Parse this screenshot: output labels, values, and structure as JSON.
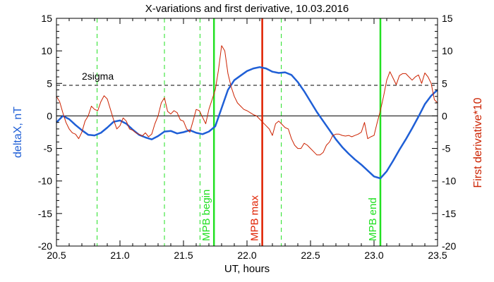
{
  "chart_data": {
    "type": "line",
    "title": "X-variations and first derivative, 10.03.2016",
    "xlabel": "UT, hours",
    "ylabel": "deltaX, nT",
    "ylabel_right": "First derivative*10",
    "xlim": [
      20.5,
      23.5
    ],
    "ylim": [
      -20,
      15
    ],
    "ylim_right": [
      -20,
      15
    ],
    "x_ticks": [
      "20.5",
      "21.0",
      "21.5",
      "22.0",
      "22.5",
      "23.0",
      "23.5"
    ],
    "y_ticks": [
      "15",
      "10",
      "5",
      "0",
      "-5",
      "-10",
      "-15",
      "-20"
    ],
    "y_ticks_right": [
      "15",
      "10",
      "5",
      "0",
      "-5",
      "-10",
      "-15",
      "-20"
    ],
    "colors": {
      "deltaX": "#1f5fd6",
      "derivative": "#cc2200",
      "mpb_boundary": "#22e022",
      "mpb_max": "#e02000",
      "axis": "#000000"
    },
    "series": [
      {
        "name": "deltaX, nT",
        "color": "#1f5fd6",
        "x": [
          20.5,
          20.55,
          20.6,
          20.65,
          20.7,
          20.75,
          20.8,
          20.85,
          20.9,
          20.95,
          21.0,
          21.05,
          21.1,
          21.15,
          21.2,
          21.25,
          21.3,
          21.35,
          21.4,
          21.45,
          21.5,
          21.55,
          21.6,
          21.65,
          21.7,
          21.75,
          21.8,
          21.85,
          21.9,
          21.95,
          22.0,
          22.05,
          22.1,
          22.15,
          22.2,
          22.25,
          22.3,
          22.35,
          22.4,
          22.45,
          22.5,
          22.55,
          22.6,
          22.65,
          22.7,
          22.75,
          22.8,
          22.85,
          22.9,
          22.95,
          23.0,
          23.05,
          23.1,
          23.15,
          23.2,
          23.25,
          23.3,
          23.35,
          23.4,
          23.45,
          23.5
        ],
        "y": [
          -1.0,
          0.0,
          -0.5,
          -1.4,
          -2.2,
          -2.9,
          -3.0,
          -2.6,
          -1.8,
          -0.9,
          -0.7,
          -1.2,
          -2.1,
          -2.9,
          -3.3,
          -3.6,
          -3.1,
          -2.4,
          -2.3,
          -2.7,
          -2.5,
          -2.2,
          -2.6,
          -2.8,
          -2.4,
          -1.6,
          1.2,
          4.0,
          5.5,
          6.2,
          6.9,
          7.3,
          7.5,
          7.3,
          6.8,
          6.6,
          6.7,
          6.3,
          5.2,
          3.8,
          2.2,
          0.6,
          -0.8,
          -2.2,
          -3.6,
          -4.8,
          -5.8,
          -6.7,
          -7.5,
          -8.4,
          -9.3,
          -9.6,
          -8.5,
          -6.9,
          -5.2,
          -3.6,
          -1.9,
          -0.1,
          1.8,
          3.1,
          4.0
        ]
      },
      {
        "name": "First derivative*10",
        "color": "#cc2200",
        "x": [
          20.5,
          20.525,
          20.55,
          20.575,
          20.6,
          20.625,
          20.65,
          20.675,
          20.7,
          20.725,
          20.75,
          20.775,
          20.8,
          20.825,
          20.85,
          20.875,
          20.9,
          20.925,
          20.95,
          20.975,
          21.0,
          21.025,
          21.05,
          21.075,
          21.1,
          21.125,
          21.15,
          21.175,
          21.2,
          21.225,
          21.25,
          21.275,
          21.3,
          21.325,
          21.35,
          21.375,
          21.4,
          21.425,
          21.45,
          21.475,
          21.5,
          21.525,
          21.55,
          21.575,
          21.6,
          21.625,
          21.65,
          21.675,
          21.7,
          21.725,
          21.75,
          21.775,
          21.8,
          21.825,
          21.85,
          21.875,
          21.9,
          21.925,
          21.95,
          21.975,
          22.0,
          22.025,
          22.05,
          22.075,
          22.1,
          22.125,
          22.15,
          22.175,
          22.2,
          22.225,
          22.25,
          22.275,
          22.3,
          22.325,
          22.35,
          22.375,
          22.4,
          22.425,
          22.45,
          22.475,
          22.5,
          22.525,
          22.55,
          22.575,
          22.6,
          22.625,
          22.65,
          22.675,
          22.7,
          22.725,
          22.75,
          22.775,
          22.8,
          22.825,
          22.85,
          22.875,
          22.9,
          22.925,
          22.95,
          22.975,
          23.0,
          23.025,
          23.05,
          23.075,
          23.1,
          23.125,
          23.15,
          23.175,
          23.2,
          23.225,
          23.25,
          23.275,
          23.3,
          23.325,
          23.35,
          23.375,
          23.4,
          23.425,
          23.45,
          23.475,
          23.5
        ],
        "y": [
          3.0,
          2.2,
          0.5,
          -1.0,
          -2.0,
          -2.6,
          -2.8,
          -3.5,
          -2.5,
          -0.8,
          0.0,
          1.5,
          1.0,
          0.8,
          2.2,
          3.1,
          2.6,
          1.0,
          -0.6,
          -2.0,
          -1.5,
          -0.3,
          -0.8,
          -2.0,
          -2.2,
          -2.6,
          -2.8,
          -3.1,
          -2.6,
          -3.2,
          -2.8,
          -1.2,
          0.0,
          2.0,
          2.8,
          0.7,
          0.3,
          0.8,
          0.5,
          -0.6,
          -0.8,
          -2.0,
          -2.5,
          -0.8,
          1.0,
          0.8,
          -0.2,
          -1.2,
          1.0,
          2.5,
          4.0,
          7.0,
          10.8,
          10.0,
          6.5,
          4.5,
          3.0,
          2.0,
          1.5,
          1.0,
          0.8,
          0.5,
          0.2,
          0.0,
          -0.5,
          -1.0,
          -1.5,
          -2.0,
          -3.0,
          -1.2,
          -0.8,
          -1.3,
          -1.8,
          -2.0,
          -3.5,
          -4.5,
          -5.0,
          -5.0,
          -4.2,
          -4.5,
          -5.0,
          -5.5,
          -6.0,
          -6.0,
          -5.6,
          -4.5,
          -4.0,
          -3.0,
          -2.8,
          -2.8,
          -3.0,
          -3.1,
          -3.0,
          -3.2,
          -3.0,
          -2.8,
          -2.5,
          -1.0,
          -3.5,
          -3.2,
          -3.0,
          -1.0,
          0.8,
          3.0,
          5.5,
          6.8,
          5.8,
          4.8,
          6.2,
          6.5,
          6.5,
          6.0,
          5.5,
          6.0,
          6.3,
          5.0,
          6.6,
          6.0,
          5.0,
          2.5,
          2.0
        ]
      }
    ],
    "reference_lines": [
      {
        "label": "2sigma",
        "y": 4.7,
        "style": "dashed"
      }
    ],
    "vertical_markers": [
      {
        "x": 20.82,
        "style": "dashed"
      },
      {
        "x": 21.35,
        "style": "dashed"
      },
      {
        "x": 21.63,
        "style": "dashed"
      },
      {
        "x": 22.27,
        "style": "dashed"
      },
      {
        "x": 21.74,
        "style": "solid",
        "label": "MPB begin"
      },
      {
        "x": 22.12,
        "style": "solid",
        "label": "MPB max"
      },
      {
        "x": 23.05,
        "style": "solid",
        "label": "MPB end"
      }
    ],
    "grid": false,
    "legend": "none"
  }
}
